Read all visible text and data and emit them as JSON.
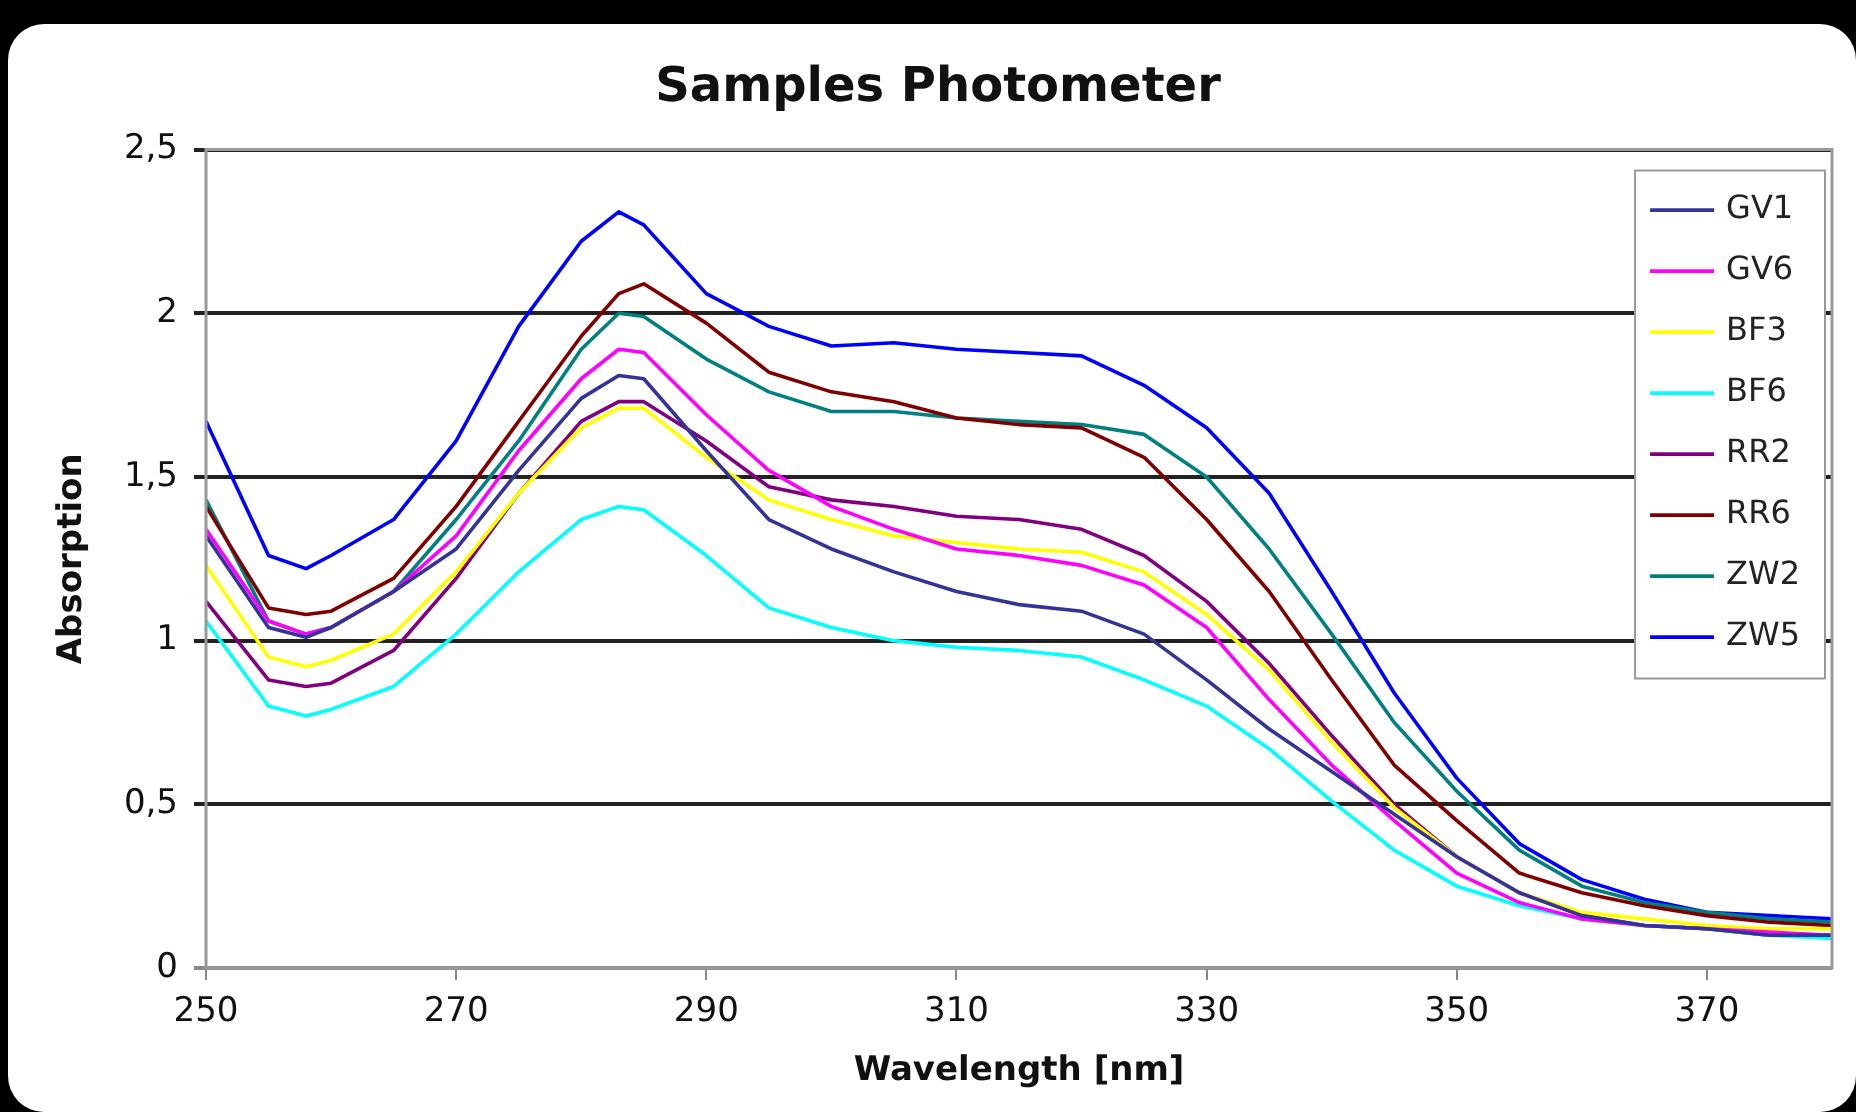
{
  "chart_data": {
    "type": "line",
    "title": "Samples Photometer",
    "xlabel": "Wavelength [nm]",
    "ylabel": "Absorption",
    "x": [
      250,
      255,
      258,
      260,
      265,
      270,
      275,
      280,
      283,
      285,
      290,
      295,
      300,
      305,
      310,
      315,
      320,
      325,
      330,
      335,
      340,
      345,
      350,
      355,
      360,
      365,
      370,
      375,
      380
    ],
    "xlim": [
      250,
      380
    ],
    "xticks": [
      250,
      270,
      290,
      310,
      330,
      350,
      370
    ],
    "ylim": [
      0,
      2.5
    ],
    "yticks": [
      {
        "value": 0,
        "label": "0"
      },
      {
        "value": 0.5,
        "label": "0,5"
      },
      {
        "value": 1,
        "label": "1"
      },
      {
        "value": 1.5,
        "label": "1,5"
      },
      {
        "value": 2,
        "label": "2"
      },
      {
        "value": 2.5,
        "label": "2,5"
      }
    ],
    "grid": "y",
    "legend": "top right",
    "marker": "none",
    "line_style": "solid",
    "series": [
      {
        "name": "GV1",
        "color": "#333399",
        "values": [
          1.32,
          1.04,
          1.01,
          1.04,
          1.15,
          1.28,
          1.52,
          1.74,
          1.81,
          1.8,
          1.58,
          1.37,
          1.28,
          1.21,
          1.15,
          1.11,
          1.09,
          1.02,
          0.88,
          0.73,
          0.6,
          0.47,
          0.34,
          0.23,
          0.16,
          0.13,
          0.12,
          0.1,
          0.1
        ]
      },
      {
        "name": "GV6",
        "color": "#ff00ff",
        "values": [
          1.34,
          1.06,
          1.02,
          1.04,
          1.15,
          1.32,
          1.58,
          1.8,
          1.89,
          1.88,
          1.69,
          1.52,
          1.41,
          1.34,
          1.28,
          1.26,
          1.23,
          1.17,
          1.04,
          0.82,
          0.62,
          0.45,
          0.29,
          0.2,
          0.15,
          0.13,
          0.12,
          0.11,
          0.1
        ]
      },
      {
        "name": "BF3",
        "color": "#ffff00",
        "values": [
          1.23,
          0.95,
          0.92,
          0.94,
          1.02,
          1.21,
          1.45,
          1.65,
          1.71,
          1.71,
          1.56,
          1.43,
          1.37,
          1.32,
          1.3,
          1.28,
          1.27,
          1.21,
          1.08,
          0.91,
          0.69,
          0.49,
          0.34,
          0.23,
          0.17,
          0.15,
          0.13,
          0.12,
          0.12
        ]
      },
      {
        "name": "BF6",
        "color": "#00ffff",
        "values": [
          1.06,
          0.8,
          0.77,
          0.79,
          0.86,
          1.02,
          1.21,
          1.37,
          1.41,
          1.4,
          1.26,
          1.1,
          1.04,
          1.0,
          0.98,
          0.97,
          0.95,
          0.88,
          0.8,
          0.67,
          0.51,
          0.36,
          0.25,
          0.19,
          0.15,
          0.13,
          0.12,
          0.1,
          0.09
        ]
      },
      {
        "name": "RR2",
        "color": "#800080",
        "values": [
          1.12,
          0.88,
          0.86,
          0.87,
          0.97,
          1.19,
          1.45,
          1.67,
          1.73,
          1.73,
          1.61,
          1.47,
          1.43,
          1.41,
          1.38,
          1.37,
          1.34,
          1.26,
          1.12,
          0.93,
          0.71,
          0.5,
          0.34,
          0.23,
          0.16,
          0.13,
          0.12,
          0.1,
          0.1
        ]
      },
      {
        "name": "RR6",
        "color": "#800000",
        "values": [
          1.41,
          1.1,
          1.08,
          1.09,
          1.19,
          1.41,
          1.67,
          1.93,
          2.06,
          2.09,
          1.97,
          1.82,
          1.76,
          1.73,
          1.68,
          1.66,
          1.65,
          1.56,
          1.37,
          1.15,
          0.88,
          0.62,
          0.45,
          0.29,
          0.23,
          0.19,
          0.16,
          0.14,
          0.13
        ]
      },
      {
        "name": "ZW2",
        "color": "#008080",
        "values": [
          1.43,
          1.06,
          1.02,
          1.04,
          1.15,
          1.37,
          1.61,
          1.89,
          2.0,
          1.99,
          1.86,
          1.76,
          1.7,
          1.7,
          1.68,
          1.67,
          1.66,
          1.63,
          1.5,
          1.28,
          1.02,
          0.75,
          0.54,
          0.36,
          0.25,
          0.2,
          0.17,
          0.15,
          0.14
        ]
      },
      {
        "name": "ZW5",
        "color": "#0000ff",
        "values": [
          1.67,
          1.26,
          1.22,
          1.26,
          1.37,
          1.61,
          1.96,
          2.22,
          2.31,
          2.27,
          2.06,
          1.96,
          1.9,
          1.91,
          1.89,
          1.88,
          1.87,
          1.78,
          1.65,
          1.45,
          1.15,
          0.84,
          0.58,
          0.38,
          0.27,
          0.21,
          0.17,
          0.16,
          0.15
        ]
      }
    ]
  }
}
